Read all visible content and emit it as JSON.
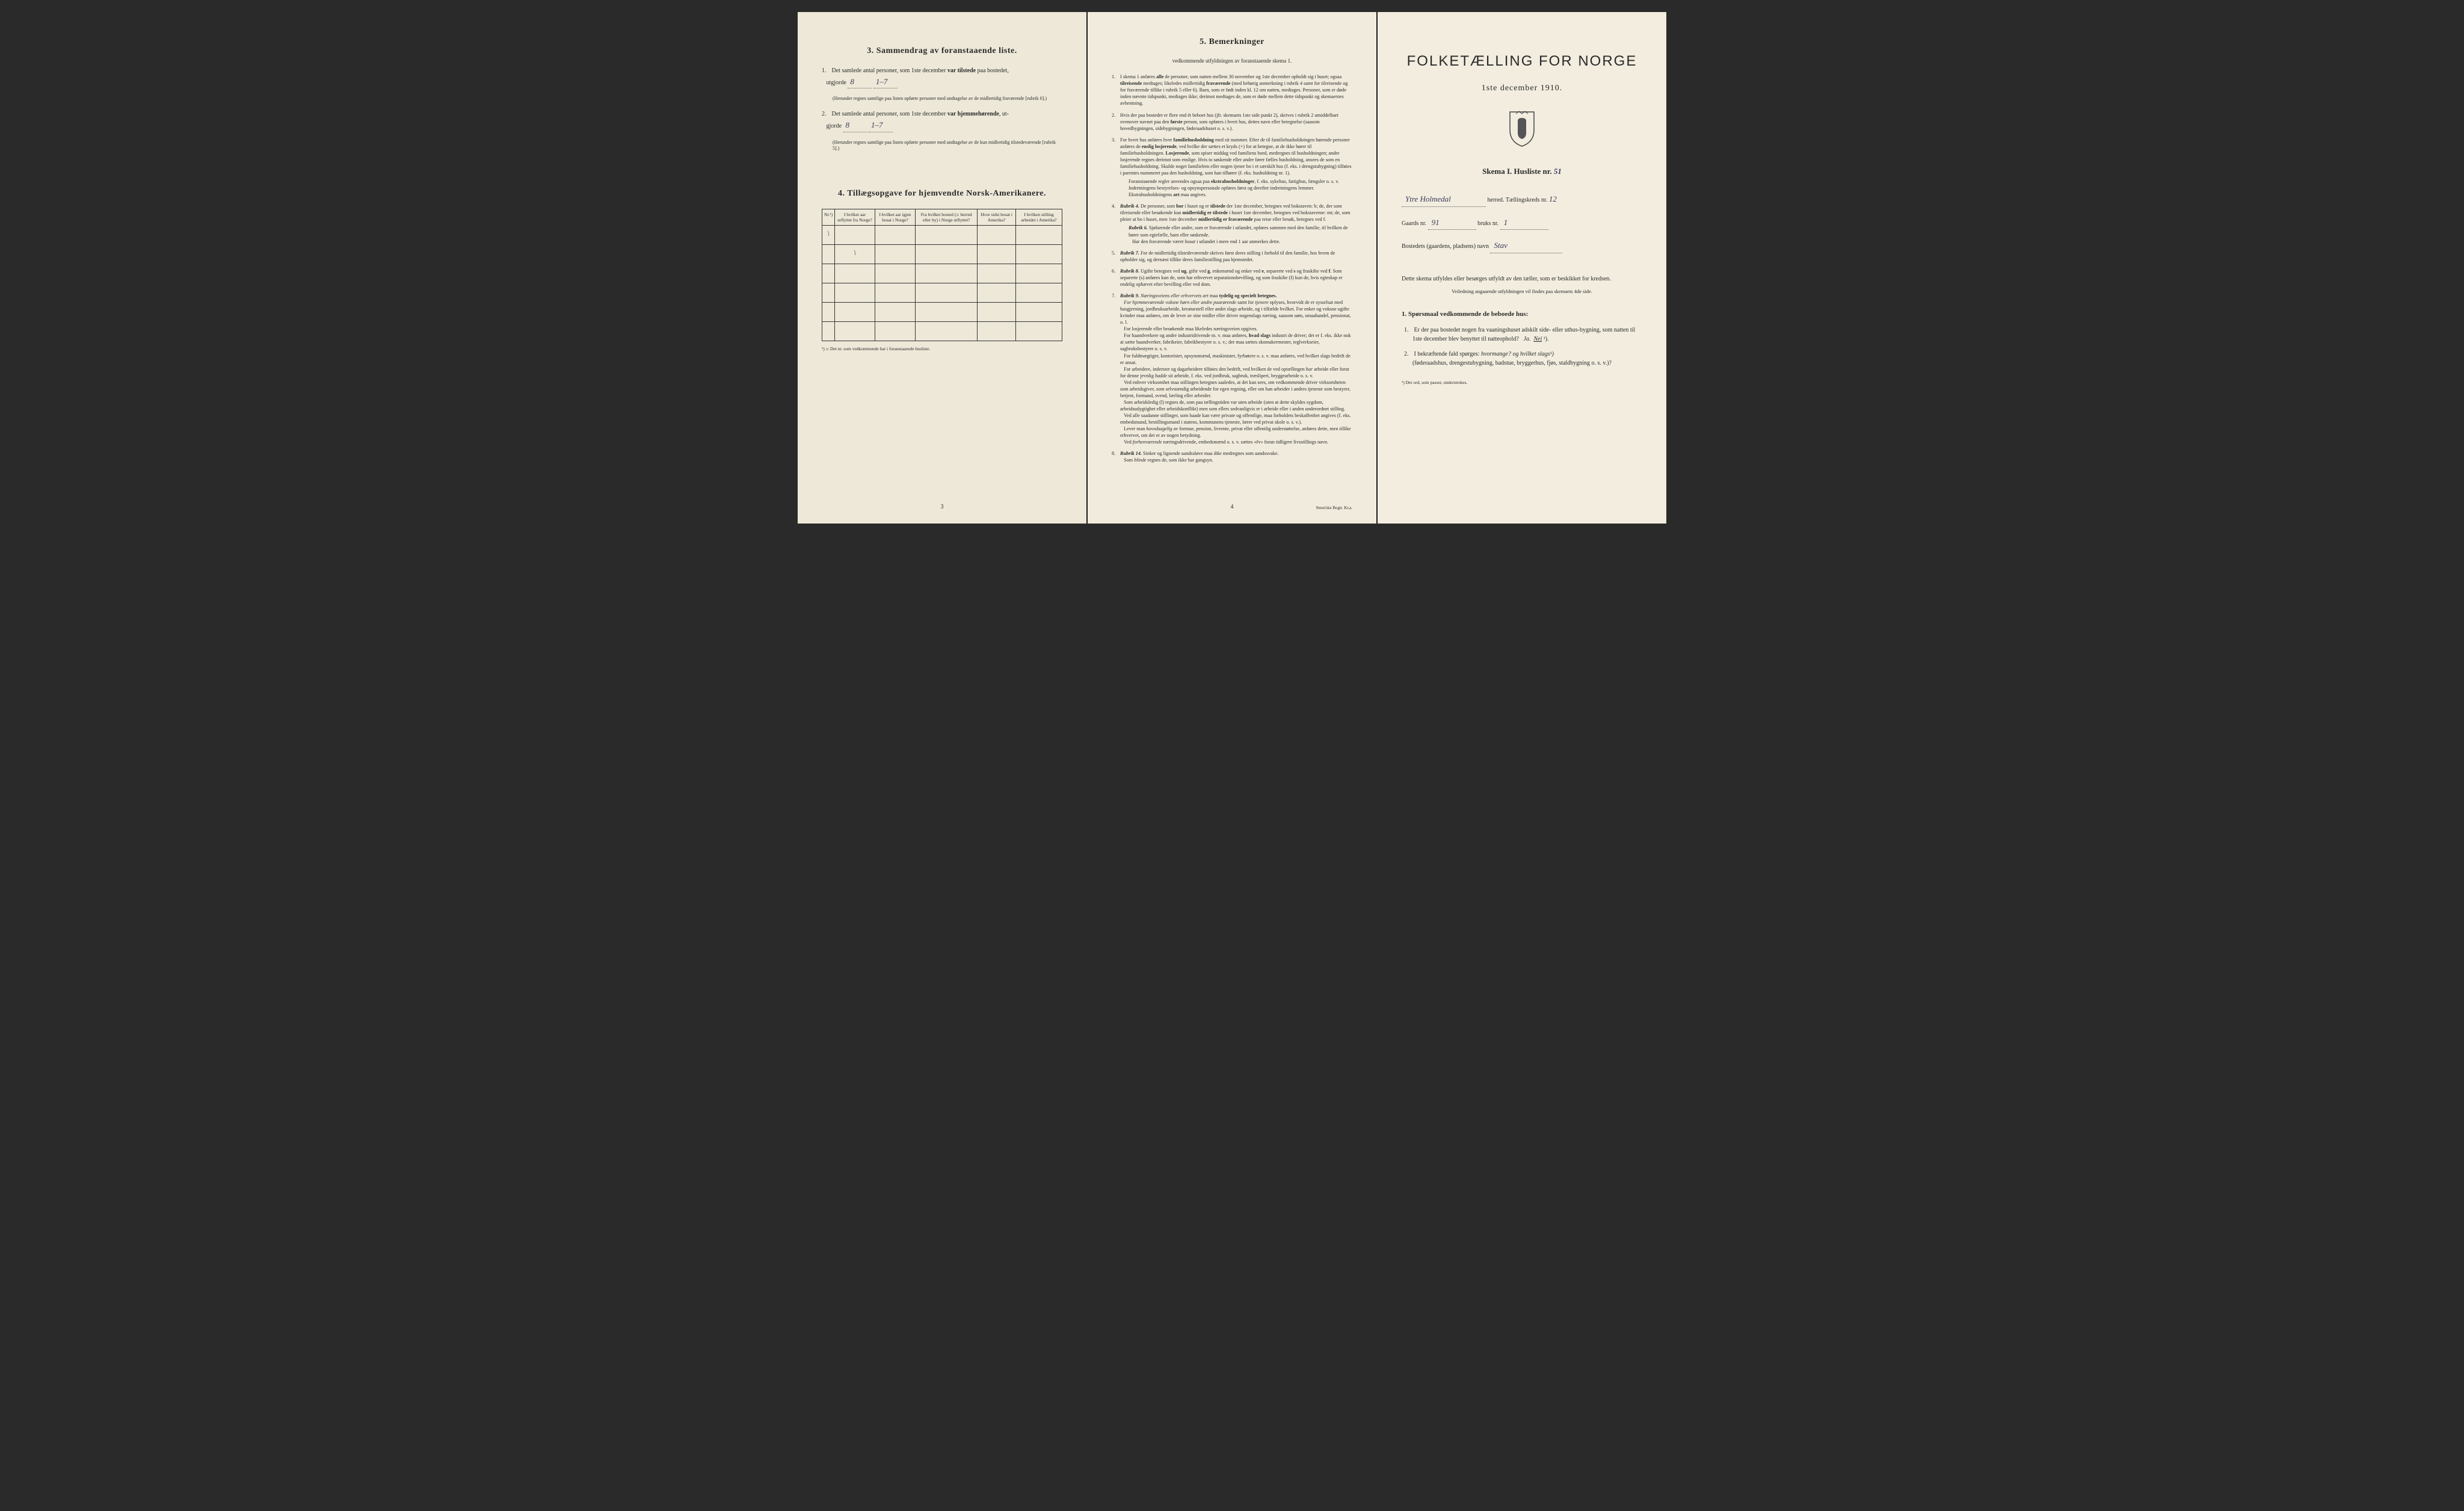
{
  "page1": {
    "section3_title": "3.  Sammendrag av foranstaaende liste.",
    "item1_text": "Det samlede antal personer, som 1ste december",
    "item1_bold": "var tilstede",
    "item1_end": "paa bostedet,",
    "utgjorde_label": "utgjorde",
    "item1_value": "8",
    "item1_value2": "1–7",
    "item1_note": "(Herunder regnes samtlige paa listen opførte personer med undtagelse av de midlertidig fraværende [rubrik 6].)",
    "item2_text": "Det samlede antal personer, som 1ste december",
    "item2_bold": "var hjemmehørende",
    "item2_end": ", ut-",
    "item2_value": "8",
    "item2_value2": "1–7",
    "item2_note": "(Herunder regnes samtlige paa listen opførte personer med undtagelse av de kun midlertidig tilstedeværende [rubrik 5].)",
    "section4_title": "4.  Tillægsopgave for hjemvendte Norsk-Amerikanere.",
    "table_headers": [
      "Nr.¹)",
      "I hvilket aar utflyttet fra Norge?",
      "I hvilket aar igjen bosat i Norge?",
      "Fra hvilket bosted (ɔ: herred eller by) i Norge utflyttet?",
      "Hvor sidst bosat i Amerika?",
      "I hvilken stilling arbeidet i Amerika?"
    ],
    "table_note": "¹) ɔ: Det nr. som vedkommende har i foranstaaende husliste.",
    "page_num": "3"
  },
  "page2": {
    "section5_title": "5.  Bemerkninger",
    "section5_sub": "vedkommende utfyldningen av foranstaaende skema 1.",
    "remarks": [
      {
        "num": "1.",
        "text": "I skema 1 anføres <b>alle</b> de personer, som natten mellem 30 november og 1ste december opholdt sig i huset; ogsaa <b>tilreisende</b> medtages; likeledes midlertidig <b>fraværende</b> (med behørig anmerkning i rubrik 4 samt for tilreisende og for fraværende tillike i rubrik 5 eller 6). Barn, som er født inden kl. 12 om natten, medtages. Personer, som er døde inden nævnte tidspunkt, medtages ikke; derimot medtages de, som er døde mellem dette tidspunkt og skemaernes avhentning."
      },
      {
        "num": "2.",
        "text": "Hvis der paa bostedet er flere end ét beboet hus (jfr. skemaets 1ste side punkt 2), skrives i rubrik 2 umiddelbart ovenover navnet paa den <b>første</b> person, som opføres i hvert hus, dettes navn eller betegnelse (saasom hovedbygningen, sidebygningen, føderaadshuset o. s. v.)."
      },
      {
        "num": "3.",
        "text": "For hvert hus anføres hver <b>familiehusholdning</b> med sit nummer. Efter de til familiehusholdningen hørende personer anføres de <b>enslig losjerende</b>, ved hvilke der sættes et kryds (×) for at betegne, at de ikke hører til familiehusholdningen. <b>Losjerende</b>, som spiser middag ved familiens bord, medregnes til husholdningen; andre losjerende regnes derimot som enslige. Hvis to søskende eller andre fører fælles husholdning, ansees de som en familiehusholdning. Skulde noget familielem eller nogen tjener bo i et særskilt hus (f. eks. i drengstubygning) tilføies i parentes nummeret paa den husholdning, som han tilhører (f. eks. husholdning nr. 1).",
        "extra": "Foranstaaende regler anvendes ogsaa paa <b>ekstrahusholdninger</b>, f. eks. sykehus, fattighus, fængsler o. s. v. Indretningens bestyrelses- og opsynspersonale opføres først og derefter indretningens lemmer. Ekstrahusholdningens <b>art</b> maa angives."
      },
      {
        "num": "4.",
        "text": "<span class='rubrik'>Rubrik 4.</span> De personer, som <b>bor</b> i huset og er <b>tilstede</b> der 1ste december, betegnes ved bokstaven: b; de, der som tilreisende eller besøkende kun <b>midlertidig er tilstede</b> i huset 1ste december, betegnes ved bokstaverne: mt; de, som pleier at bo i huset, men 1ste december <b>midlertidig er fraværende</b> paa reise eller besøk, betegnes ved f.",
        "extra": "<span class='rubrik'>Rubrik 6.</span> Sjøfarende eller andre, som er fraværende i utlandet, opføres sammen med den familie, til hvilken de hører som egtefælle, barn eller søskende.<br>&nbsp;&nbsp;&nbsp;Har den fraværende været <i>bosat</i> i utlandet i mere end 1 aar anmerkes dette."
      },
      {
        "num": "5.",
        "text": "<span class='rubrik'>Rubrik 7.</span> For de midlertidig tilstedeværende skrives først deres stilling i forhold til den familie, hos hvem de opholder sig, og dernæst tillike deres familiestilling paa hjemstedet."
      },
      {
        "num": "6.",
        "text": "<span class='rubrik'>Rubrik 8.</span> Ugifte betegnes ved <b>ug</b>, gifte ved <b>g</b>, enkemænd og enker ved <b>e</b>, separerte ved <b>s</b> og fraskilte ved <b>f</b>. Som separerte (s) anføres kun de, som har erhvervet separationsbevilling, og som fraskilte (f) kun de, hvis egteskap er endelig ophævet efter bevilling eller ved dom."
      },
      {
        "num": "7.",
        "text": "<span class='rubrik'>Rubrik 9.</span> <i>Næringsveiens eller erhvervets art</i> maa <b>tydelig og specielt betegnes.</b><br>&nbsp;&nbsp;&nbsp;<i>For hjemmeværende voksne børn eller andre paarørende</i> samt for <i>tjenere</i> oplyses, hvorvidt de er sysselsat med husgjerning, jordbruksarbeide, kreaturstell eller andet slags arbeide, og i tilfælde hvilket. For enker og voksne ugifte kvinder maa anføres, om de lever av sine midler eller driver nogenslags næring, saasom søm, smaahandel, pensionat, o. l.<br>&nbsp;&nbsp;&nbsp;For losjerende eller besøkende maa likeledes næringsveien opgives.<br>&nbsp;&nbsp;&nbsp;For haandverkere og andre industridrivende m. v. maa anføres, <b>hvad slags</b> industri de driver; det er f. eks. ikke nok at sætte haandverker, fabrikeier, fabrikbestyrer o. s. v.; der maa sættes skomakermester, teglverkseier, sagbruksbestyrer o. s. v.<br>&nbsp;&nbsp;&nbsp;For fuldmægtiger, kontorister, opsynsmænd, maskinister, fyrbøtere o. s. v. maa anføres, ved hvilket slags bedrift de er ansat.<br>&nbsp;&nbsp;&nbsp;For arbeidere, inderster og dagarbeidere tilføies den bedrift, ved hvilken de ved optællingen <i>har</i> arbeide eller forut for denne jevnlig <i>hadde</i> sit arbeide, f. eks. ved jordbruk, sagbruk, træsliperi, bryggearbeide o. s. v.<br>&nbsp;&nbsp;&nbsp;Ved enhver virksomhet maa stillingen betegnes saaledes, at det kan sees, om vedkommende driver virksomheten som arbeidsgiver, som selvstændig arbeidende for egen regning, eller om han arbeider i andres tjeneste som bestyrer, betjent, formand, svend, lærling eller arbeider.<br>&nbsp;&nbsp;&nbsp;Som arbeidsledig (l) regnes de, som paa tællingstiden var uten arbeide (uten at dette skyldes sygdom, arbeidsudygtighet eller arbeidskonflikt) men som ellers sedvanligvis er i arbeide eller i anden underordnet stilling.<br>&nbsp;&nbsp;&nbsp;Ved alle saadanne stillinger, som baade kan være private og offentlige, maa forholdets beskaffenhet angives (f. eks. embedsmand, bestillingsmand i statens, kommunens tjeneste, lærer ved privat skole o. s. v.).<br>&nbsp;&nbsp;&nbsp;Lever man <i>hovedsagelig</i> av formue, pension, livrente, privat eller offentlig understøttelse, anføres dette, men tillike erhvervet, om det er av nogen betydning.<br>&nbsp;&nbsp;&nbsp;Ved <i>forhenværende</i> næringsdrivende, embedsmænd o. s. v. sættes «fv» foran tidligere livsstillings navn."
      },
      {
        "num": "8.",
        "text": "<span class='rubrik'>Rubrik 14.</span> Sinker og lignende aandssløve maa <i>ikke</i> medregnes som aandssvake.<br>&nbsp;&nbsp;&nbsp;Som <i>blinde</i> regnes de, som ikke har gangsyn."
      }
    ],
    "page_num": "4",
    "printer": "Steen'ske Bogtr. Kr.a."
  },
  "page3": {
    "main_title": "FOLKETÆLLING FOR NORGE",
    "date": "1ste december 1910.",
    "skema": "Skema I.  Husliste nr.",
    "skema_value": "51",
    "herred_value": "Ytre Holmedal",
    "herred_label": "herred.  Tællingskreds nr.",
    "kreds_value": "12",
    "gaard_label": "Gaards nr.",
    "gaard_value": "91",
    "bruks_label": "bruks nr.",
    "bruks_value": "1",
    "bosted_label": "Bostedets (gaardens, pladsens) navn",
    "bosted_value": "Stav",
    "instruction": "Dette skema utfyldes eller besørges utfyldt av den tæller, som er beskikket for kredsen.",
    "instruction_sub": "Veiledning angaaende utfyldningen vil findes paa skemaets 4de side.",
    "questions_title": "1. Spørsmaal vedkommende de beboede hus:",
    "q1": "Er der paa bostedet nogen fra vaaningshuset adskilt side- eller uthus-bygning, som natten til 1ste december blev benyttet til natteophold?",
    "q1_ja": "Ja.",
    "q1_nei": "Nei",
    "q2": "I bekræftende fald spørges:",
    "q2_hvor": "hvormange?",
    "q2_og": "og hvilket slags¹)",
    "q2_list": "(føderaadshus, drengestubygning, badstue, bryggerhus, fjøs, staldbygning o. s. v.)?",
    "footnote": "¹) Det ord, som passer, understrekes."
  }
}
